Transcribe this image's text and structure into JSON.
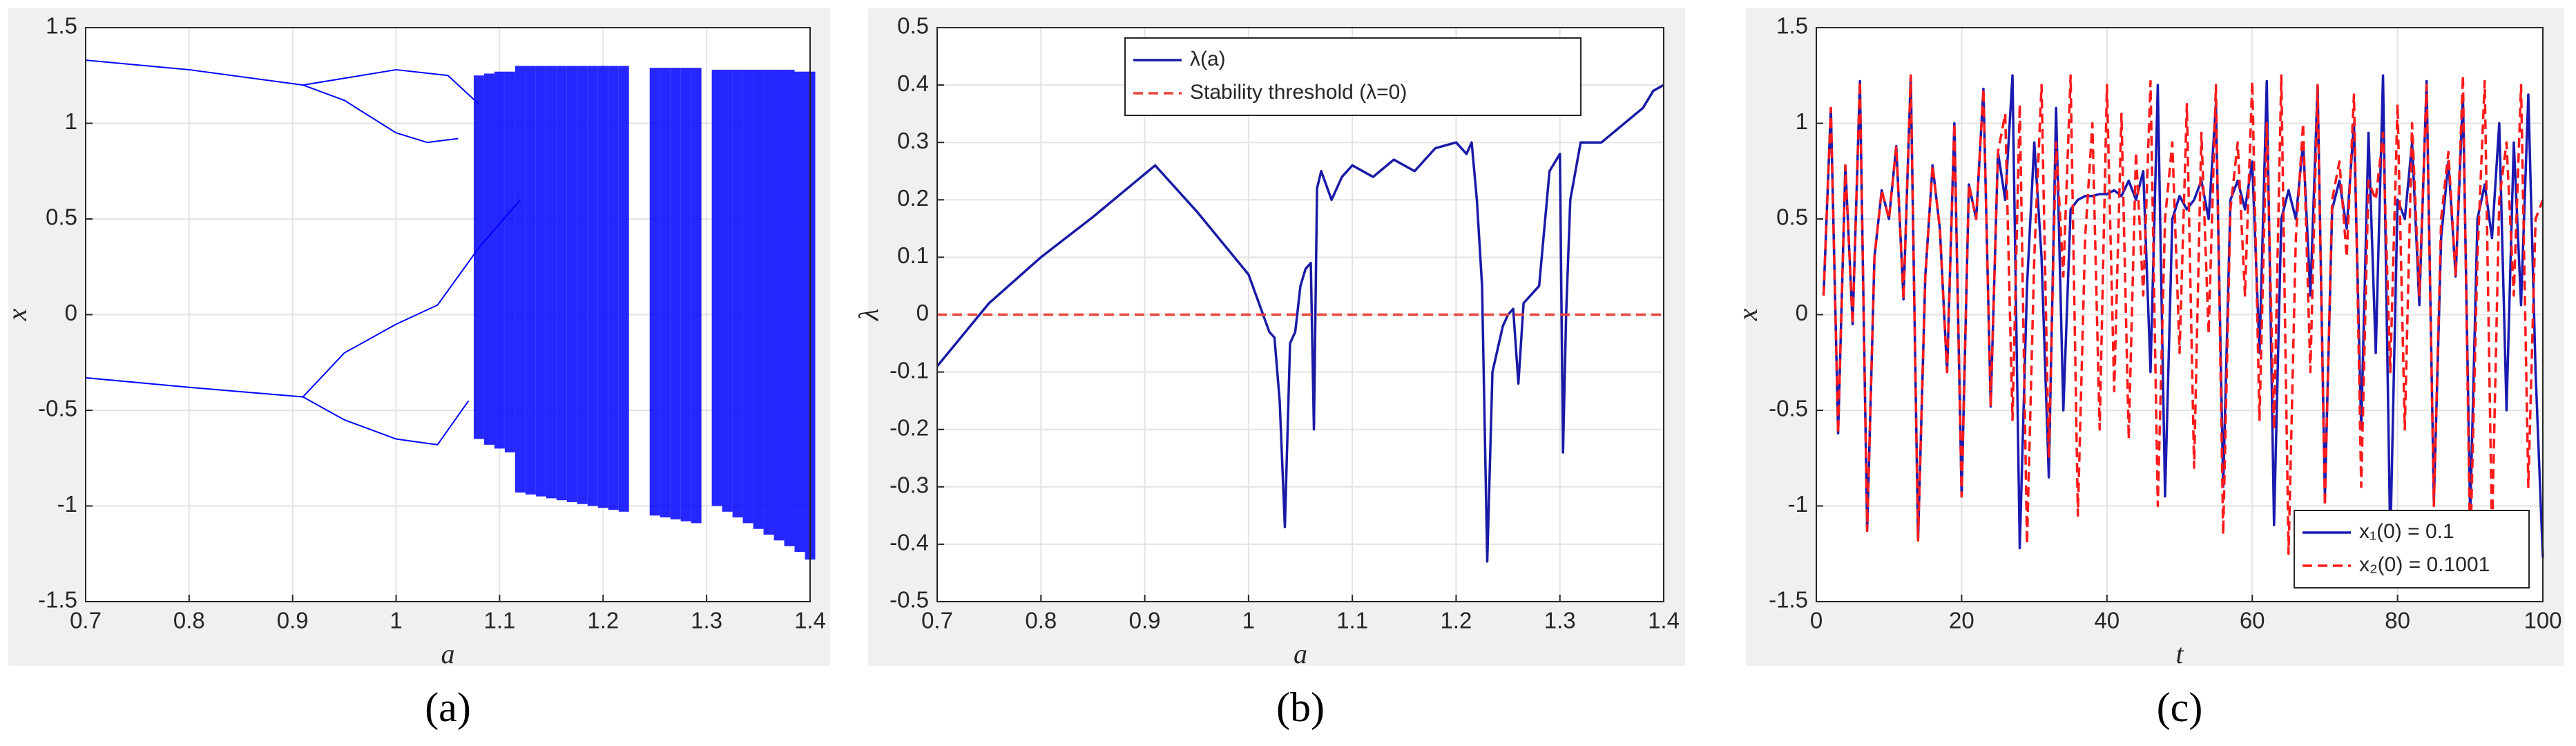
{
  "chart_data": [
    {
      "type": "bifurcation",
      "caption": "(a)",
      "xlabel": "a",
      "ylabel": "x",
      "xlim": [
        0.7,
        1.4
      ],
      "ylim": [
        -1.5,
        1.5
      ],
      "xticks": [
        0.7,
        0.8,
        0.9,
        1,
        1.1,
        1.2,
        1.3,
        1.4
      ],
      "yticks": [
        -1.5,
        -1,
        -0.5,
        0,
        0.5,
        1,
        1.5
      ],
      "grid": true,
      "color": "#0000ff",
      "series": [
        {
          "x": [
            0.7,
            0.8,
            0.91,
            1.0,
            1.05,
            1.08
          ],
          "values": [
            1.33,
            1.28,
            1.2,
            1.28,
            1.25,
            1.1
          ]
        },
        {
          "x": [
            0.91,
            0.95,
            1.0,
            1.03,
            1.06
          ],
          "values": [
            1.2,
            1.12,
            0.95,
            0.9,
            0.92
          ]
        },
        {
          "x": [
            0.7,
            0.8,
            0.91,
            0.95,
            1.0,
            1.04,
            1.08,
            1.12
          ],
          "values": [
            -0.33,
            -0.38,
            -0.43,
            -0.2,
            -0.05,
            0.05,
            0.35,
            0.6
          ]
        },
        {
          "x": [
            0.91,
            0.95,
            1.0,
            1.04,
            1.07
          ],
          "values": [
            -0.43,
            -0.55,
            -0.65,
            -0.68,
            -0.45
          ]
        }
      ],
      "bands": {
        "x": [
          1.08,
          1.09,
          1.1,
          1.11,
          1.12,
          1.13,
          1.14,
          1.15,
          1.16,
          1.17,
          1.18,
          1.19,
          1.2,
          1.21,
          1.22,
          1.25,
          1.26,
          1.27,
          1.28,
          1.29,
          1.31,
          1.32,
          1.33,
          1.34,
          1.35,
          1.36,
          1.37,
          1.38,
          1.39,
          1.4
        ],
        "low": [
          -0.65,
          -0.68,
          -0.7,
          -0.72,
          -0.93,
          -0.94,
          -0.95,
          -0.96,
          -0.97,
          -0.98,
          -0.99,
          -1.0,
          -1.01,
          -1.02,
          -1.03,
          -1.05,
          -1.06,
          -1.07,
          -1.08,
          -1.09,
          -1.0,
          -1.03,
          -1.06,
          -1.09,
          -1.12,
          -1.15,
          -1.18,
          -1.21,
          -1.24,
          -1.28
        ],
        "high": [
          1.25,
          1.26,
          1.27,
          1.27,
          1.3,
          1.3,
          1.3,
          1.3,
          1.3,
          1.3,
          1.3,
          1.3,
          1.3,
          1.3,
          1.3,
          1.29,
          1.29,
          1.29,
          1.29,
          1.29,
          1.28,
          1.28,
          1.28,
          1.28,
          1.28,
          1.28,
          1.28,
          1.28,
          1.27,
          1.27
        ]
      }
    },
    {
      "type": "line",
      "caption": "(b)",
      "xlabel": "a",
      "ylabel": "λ",
      "xlim": [
        0.7,
        1.4
      ],
      "ylim": [
        -0.5,
        0.5
      ],
      "xticks": [
        0.7,
        0.8,
        0.9,
        1,
        1.1,
        1.2,
        1.3,
        1.4
      ],
      "yticks": [
        -0.5,
        -0.4,
        -0.3,
        -0.2,
        -0.1,
        0,
        0.1,
        0.2,
        0.3,
        0.4,
        0.5
      ],
      "grid": true,
      "legend": "upper right",
      "series": [
        {
          "name": "λ(a)",
          "color": "#1a1aa6",
          "dash": false,
          "x": [
            0.7,
            0.75,
            0.8,
            0.85,
            0.91,
            0.95,
            1.0,
            1.02,
            1.025,
            1.03,
            1.035,
            1.04,
            1.045,
            1.05,
            1.055,
            1.06,
            1.063,
            1.066,
            1.07,
            1.08,
            1.09,
            1.1,
            1.12,
            1.14,
            1.16,
            1.18,
            1.2,
            1.21,
            1.215,
            1.22,
            1.225,
            1.23,
            1.235,
            1.245,
            1.25,
            1.255,
            1.26,
            1.265,
            1.27,
            1.28,
            1.29,
            1.3,
            1.303,
            1.306,
            1.31,
            1.32,
            1.34,
            1.36,
            1.38,
            1.39,
            1.4
          ],
          "values": [
            -0.09,
            0.02,
            0.1,
            0.17,
            0.26,
            0.18,
            0.07,
            -0.03,
            -0.04,
            -0.15,
            -0.37,
            -0.05,
            -0.03,
            0.05,
            0.08,
            0.09,
            -0.2,
            0.22,
            0.25,
            0.2,
            0.24,
            0.26,
            0.24,
            0.27,
            0.25,
            0.29,
            0.3,
            0.28,
            0.3,
            0.2,
            0.05,
            -0.43,
            -0.1,
            -0.02,
            0.0,
            0.01,
            -0.12,
            0.02,
            0.03,
            0.05,
            0.25,
            0.28,
            -0.24,
            0.0,
            0.2,
            0.3,
            0.3,
            0.33,
            0.36,
            0.39,
            0.4
          ]
        },
        {
          "name": "Stability threshold (λ=0)",
          "color": "#e8423c",
          "dash": true,
          "x": [
            0.7,
            1.4
          ],
          "values": [
            0,
            0
          ]
        }
      ]
    },
    {
      "type": "line",
      "caption": "(c)",
      "xlabel": "t",
      "ylabel": "x",
      "xlim": [
        0,
        100
      ],
      "ylim": [
        -1.5,
        1.5
      ],
      "xticks": [
        0,
        20,
        40,
        60,
        80,
        100
      ],
      "yticks": [
        -1.5,
        -1,
        -0.5,
        0,
        0.5,
        1,
        1.5
      ],
      "grid": true,
      "legend": "lower right",
      "series": [
        {
          "name": "x₁(0) = 0.1",
          "color": "#1a1ab0",
          "dash": false,
          "x": [
            1,
            2,
            3,
            4,
            5,
            6,
            7,
            8,
            9,
            10,
            11,
            12,
            13,
            14,
            15,
            16,
            17,
            18,
            19,
            20,
            21,
            22,
            23,
            24,
            25,
            26,
            27,
            28,
            29,
            30,
            31,
            32,
            33,
            34,
            35,
            36,
            37,
            38,
            39,
            40,
            41,
            42,
            43,
            44,
            45,
            46,
            47,
            48,
            49,
            50,
            51,
            52,
            53,
            54,
            55,
            56,
            57,
            58,
            59,
            60,
            61,
            62,
            63,
            64,
            65,
            66,
            67,
            68,
            69,
            70,
            71,
            72,
            73,
            74,
            75,
            76,
            77,
            78,
            79,
            80,
            81,
            82,
            83,
            84,
            85,
            86,
            87,
            88,
            89,
            90,
            91,
            92,
            93,
            94,
            95,
            96,
            97,
            98,
            99,
            100
          ],
          "values": [
            0.1,
            1.08,
            -0.62,
            0.78,
            -0.05,
            1.22,
            -1.13,
            0.3,
            0.65,
            0.5,
            0.88,
            0.08,
            1.25,
            -1.18,
            0.2,
            0.78,
            0.45,
            -0.3,
            1.0,
            -0.95,
            0.68,
            0.5,
            1.18,
            -0.48,
            0.85,
            0.6,
            1.25,
            -1.22,
            0.15,
            0.9,
            0.3,
            -0.85,
            1.08,
            -0.5,
            0.55,
            0.6,
            0.62,
            0.62,
            0.63,
            0.63,
            0.65,
            0.62,
            0.7,
            0.6,
            0.75,
            -0.3,
            1.2,
            -0.95,
            0.5,
            0.62,
            0.55,
            0.6,
            0.7,
            0.5,
            1.1,
            -0.9,
            0.6,
            0.7,
            0.55,
            0.8,
            -0.2,
            1.22,
            -1.1,
            0.5,
            0.65,
            0.5,
            0.9,
            0.1,
            1.2,
            -0.95,
            0.55,
            0.7,
            0.45,
            1.0,
            -0.6,
            0.95,
            -0.2,
            1.25,
            -1.2,
            0.6,
            0.5,
            0.9,
            0.05,
            1.22,
            -0.98,
            0.4,
            0.8,
            0.2,
            1.15,
            -1.05,
            0.5,
            0.68,
            0.4,
            1.0,
            -0.5,
            0.9,
            0.05,
            1.15,
            -0.3,
            -1.27
          ]
        },
        {
          "name": "x₂(0) = 0.1001",
          "color": "#ff1a1a",
          "dash": true,
          "x": [
            1,
            2,
            3,
            4,
            5,
            6,
            7,
            8,
            9,
            10,
            11,
            12,
            13,
            14,
            15,
            16,
            17,
            18,
            19,
            20,
            21,
            22,
            23,
            24,
            25,
            26,
            27,
            28,
            29,
            30,
            31,
            32,
            33,
            34,
            35,
            36,
            37,
            38,
            39,
            40,
            41,
            42,
            43,
            44,
            45,
            46,
            47,
            48,
            49,
            50,
            51,
            52,
            53,
            54,
            55,
            56,
            57,
            58,
            59,
            60,
            61,
            62,
            63,
            64,
            65,
            66,
            67,
            68,
            69,
            70,
            71,
            72,
            73,
            74,
            75,
            76,
            77,
            78,
            79,
            80,
            81,
            82,
            83,
            84,
            85,
            86,
            87,
            88,
            89,
            90,
            91,
            92,
            93,
            94,
            95,
            96,
            97,
            98,
            99,
            100
          ],
          "values": [
            0.1,
            1.08,
            -0.62,
            0.78,
            -0.05,
            1.22,
            -1.13,
            0.3,
            0.65,
            0.5,
            0.88,
            0.08,
            1.25,
            -1.18,
            0.2,
            0.78,
            0.45,
            -0.3,
            1.0,
            -0.95,
            0.68,
            0.5,
            1.18,
            -0.48,
            0.85,
            1.05,
            -0.55,
            1.1,
            -1.2,
            0.3,
            1.2,
            -0.75,
            0.9,
            0.2,
            1.25,
            -1.05,
            0.4,
            1.0,
            -0.6,
            1.2,
            -0.4,
            1.05,
            -0.65,
            0.85,
            0.1,
            1.22,
            -1.0,
            0.5,
            0.9,
            -0.2,
            1.1,
            -0.8,
            0.95,
            -0.1,
            1.2,
            -1.15,
            0.55,
            0.9,
            0.1,
            1.22,
            -0.55,
            1.0,
            -0.6,
            1.25,
            -1.25,
            0.4,
            1.0,
            -0.3,
            1.2,
            -1.0,
            0.6,
            0.8,
            0.3,
            1.15,
            -0.9,
            0.7,
            0.6,
            0.95,
            -0.3,
            1.1,
            -0.6,
            1.0,
            0.1,
            1.2,
            -1.0,
            0.5,
            0.85,
            0.2,
            1.25,
            -1.25,
            0.3,
            1.22,
            -1.15,
            0.6,
            0.9,
            0.1,
            1.2,
            -0.9,
            0.5,
            0.6
          ]
        }
      ]
    }
  ]
}
